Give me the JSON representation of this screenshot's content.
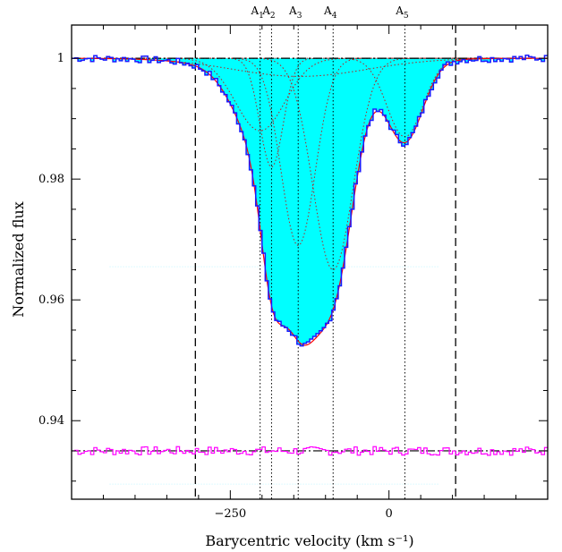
{
  "chart_data": {
    "type": "line",
    "xlabel": "Barycentric velocity (km s⁻¹)",
    "ylabel": "Normalized flux",
    "xlim": [
      -500,
      250
    ],
    "ylim": [
      0.927,
      1.0055
    ],
    "xticks": [
      -250,
      0
    ],
    "yticks": [
      0.94,
      0.96,
      0.98,
      1
    ],
    "ytick_labels": [
      "0.94",
      "0.96",
      "0.98",
      "1"
    ],
    "xtick_labels": [
      "−250",
      "0"
    ],
    "colors": {
      "fill": "#00ffff",
      "data": "#1a1aff",
      "model": "#ff0000",
      "components": "#b22222",
      "residual": "#ff00ff",
      "axes": "#000000"
    },
    "integration_limits": [
      -305,
      105
    ],
    "components": [
      {
        "label": "A",
        "sub": "1",
        "v": -203,
        "b": 55,
        "depth": 0.012
      },
      {
        "label": "A",
        "sub": "2",
        "v": -185,
        "b": 26,
        "depth": 0.018
      },
      {
        "label": "A",
        "sub": "3",
        "v": -143,
        "b": 38,
        "depth": 0.031
      },
      {
        "label": "A",
        "sub": "4",
        "v": -88,
        "b": 45,
        "depth": 0.035
      },
      {
        "label": "A",
        "sub": "5",
        "v": 25,
        "b": 40,
        "depth": 0.013
      }
    ],
    "broad_component": {
      "v": -140,
      "b": 150,
      "depth": 0.003
    },
    "continuum": 1.0,
    "residual_offset": 0.935,
    "faint_lines": [
      0.9655,
      0.9295
    ],
    "noise_seed": 7
  }
}
